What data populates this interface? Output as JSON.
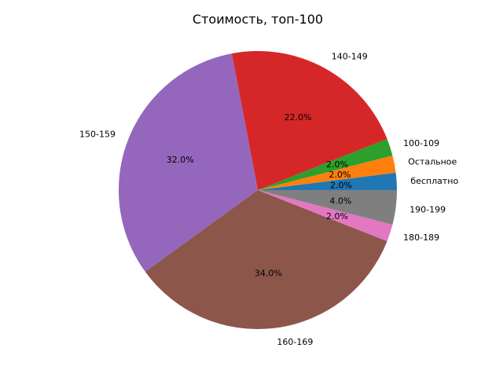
{
  "chart_data": {
    "type": "pie",
    "title": "Стоимость, топ-100",
    "categories": [
      "бесплатно",
      "Остальное",
      "100-109",
      "140-149",
      "150-159",
      "160-169",
      "180-189",
      "190-199"
    ],
    "values": [
      2,
      2,
      2,
      22,
      32,
      34,
      2,
      4
    ],
    "percent_labels": [
      "2.0%",
      "2.0%",
      "2.0%",
      "22.0%",
      "32.0%",
      "34.0%",
      "2.0%",
      "4.0%"
    ],
    "colors": [
      "#1f77b4",
      "#ff7f0e",
      "#2ca02c",
      "#d62728",
      "#9467bd",
      "#8c564b",
      "#e377c2",
      "#7f7f7f"
    ],
    "start_angle": 0,
    "direction": "counterclockwise",
    "legend": "none"
  }
}
